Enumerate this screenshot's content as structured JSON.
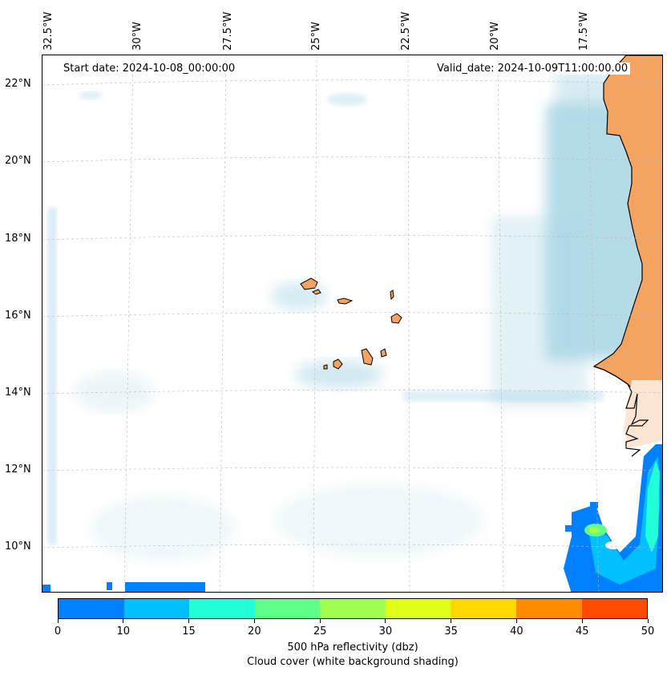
{
  "header": {
    "start_date": "Start date: 2024-10-08_00:00:00",
    "valid_date": "Valid_date: 2024-10-09T11:00:00.00"
  },
  "axes": {
    "longitude_labels": [
      "32.5°W",
      "30°W",
      "27.5°W",
      "25°W",
      "22.5°W",
      "20°W",
      "17.5°W"
    ],
    "latitude_labels": [
      "22°N",
      "20°N",
      "18°N",
      "16°N",
      "14°N",
      "12°N",
      "10°N"
    ]
  },
  "colorbar": {
    "ticks": [
      "0",
      "10",
      "15",
      "20",
      "25",
      "30",
      "35",
      "40",
      "45",
      "50"
    ],
    "colors": [
      "#0080ff",
      "#00c0ff",
      "#20ffd8",
      "#60ff8c",
      "#a0ff50",
      "#e0ff18",
      "#ffd800",
      "#ff8c00",
      "#ff4a00"
    ],
    "title": "500 hPa reflectivity (dbz)",
    "subtitle": "Cloud cover (white background shading)"
  },
  "style": {
    "land_color": "#f4a460",
    "cloud_color": "#add8e6",
    "coast_color": "#000000"
  }
}
